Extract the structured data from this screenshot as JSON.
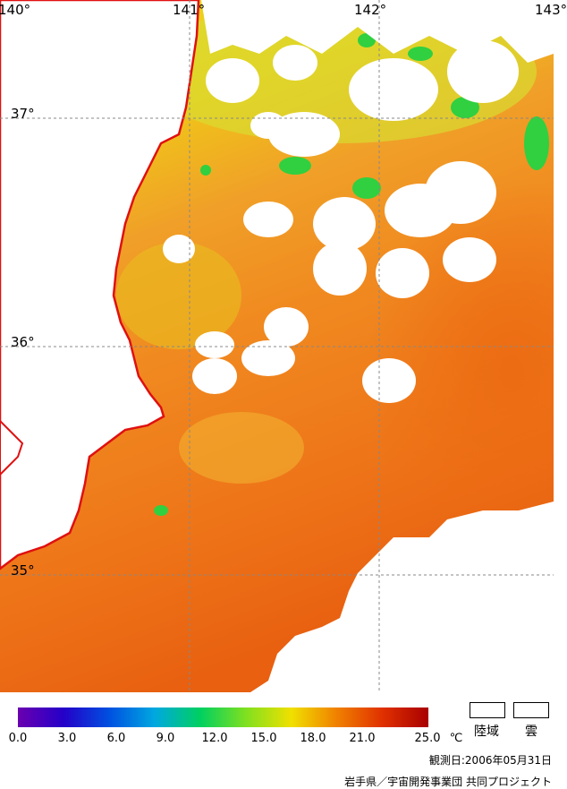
{
  "map": {
    "lon_labels": [
      "140°",
      "141°",
      "142°",
      "143°"
    ],
    "lat_labels": [
      "37°",
      "36°",
      "35°"
    ]
  },
  "legend": {
    "ticks": [
      "0.0",
      "3.0",
      "6.0",
      "9.0",
      "12.0",
      "15.0",
      "18.0",
      "21.0",
      "25.0"
    ],
    "unit": "℃",
    "colors": [
      "#6a00b0",
      "#2400c8",
      "#0050e0",
      "#00a8e0",
      "#00d060",
      "#80e020",
      "#f0e000",
      "#f08000",
      "#e03000",
      "#a80000"
    ],
    "land_label": "陸域",
    "cloud_label": "雲"
  },
  "footer": {
    "observation": "観測日:2006年05月31日",
    "credit": "岩手県／宇宙開発事業団 共同プロジェクト"
  }
}
